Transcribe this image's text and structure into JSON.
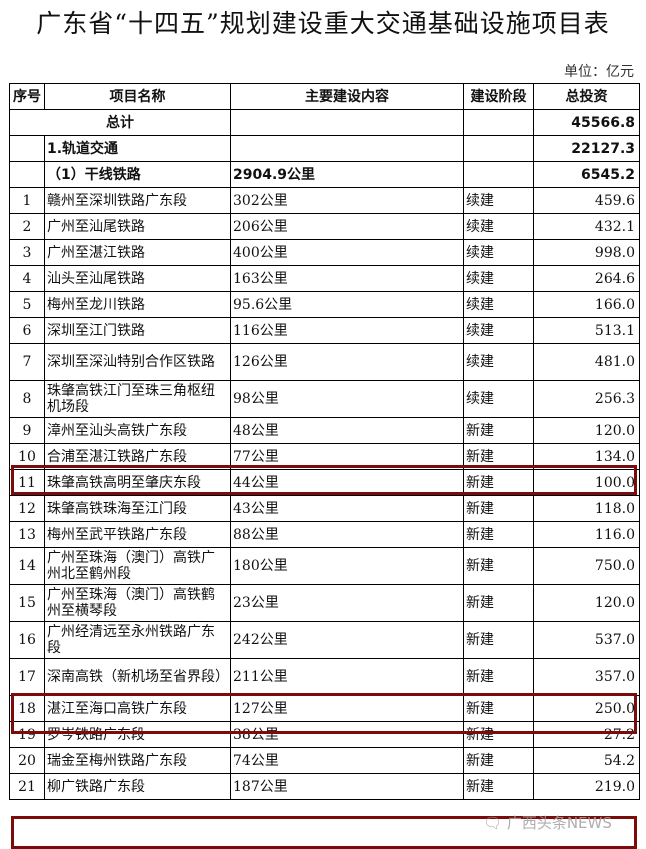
{
  "title": "广东省“十四五”规划建设重大交通基础设施项目表",
  "unit": "单位：亿元",
  "headers": [
    "序号",
    "项目名称",
    "主要建设内容",
    "建设阶段",
    "总投资"
  ],
  "total": {
    "label": "总计",
    "value": "45566.8"
  },
  "category": {
    "label": "1.轨道交通",
    "value": "22127.3"
  },
  "subcategory": {
    "label": "（1）干线铁路",
    "content": "2904.9公里",
    "value": "6545.2"
  },
  "rows": [
    {
      "no": "1",
      "name": "赣州至深圳铁路广东段",
      "content": "302公里",
      "stage": "续建",
      "value": "459.6"
    },
    {
      "no": "2",
      "name": "广州至汕尾铁路",
      "content": "206公里",
      "stage": "续建",
      "value": "432.1"
    },
    {
      "no": "3",
      "name": "广州至湛江铁路",
      "content": "400公里",
      "stage": "续建",
      "value": "998.0"
    },
    {
      "no": "4",
      "name": "汕头至汕尾铁路",
      "content": "163公里",
      "stage": "续建",
      "value": "264.6"
    },
    {
      "no": "5",
      "name": "梅州至龙川铁路",
      "content": "95.6公里",
      "stage": "续建",
      "value": "166.0"
    },
    {
      "no": "6",
      "name": "深圳至江门铁路",
      "content": "116公里",
      "stage": "续建",
      "value": "513.1"
    },
    {
      "no": "7",
      "name": "深圳至深汕特别合作区铁路",
      "content": "126公里",
      "stage": "续建",
      "value": "481.0"
    },
    {
      "no": "8",
      "name": "珠肇高铁江门至珠三角枢纽机场段",
      "content": "98公里",
      "stage": "续建",
      "value": "256.3"
    },
    {
      "no": "9",
      "name": "漳州至汕头高铁广东段",
      "content": "48公里",
      "stage": "新建",
      "value": "120.0"
    },
    {
      "no": "10",
      "name": "合浦至湛江铁路广东段",
      "content": "77公里",
      "stage": "新建",
      "value": "134.0",
      "highlighted": true
    },
    {
      "no": "11",
      "name": "珠肇高铁高明至肇庆东段",
      "content": "44公里",
      "stage": "新建",
      "value": "100.0"
    },
    {
      "no": "12",
      "name": "珠肇高铁珠海至江门段",
      "content": "43公里",
      "stage": "新建",
      "value": "118.0"
    },
    {
      "no": "13",
      "name": "梅州至武平铁路广东段",
      "content": "88公里",
      "stage": "新建",
      "value": "116.0"
    },
    {
      "no": "14",
      "name": "广州至珠海（澳门）高铁广州北至鹤州段",
      "content": "180公里",
      "stage": "新建",
      "value": "750.0"
    },
    {
      "no": "15",
      "name": "广州至珠海（澳门）高铁鹤州至横琴段",
      "content": "23公里",
      "stage": "新建",
      "value": "120.0"
    },
    {
      "no": "16",
      "name": "广州经清远至永州铁路广东段",
      "content": "242公里",
      "stage": "新建",
      "value": "537.0"
    },
    {
      "no": "17",
      "name": "深南高铁（新机场至省界段）",
      "content": "211公里",
      "stage": "新建",
      "value": "357.0",
      "highlighted": true
    },
    {
      "no": "18",
      "name": "湛江至海口高铁广东段",
      "content": "127公里",
      "stage": "新建",
      "value": "250.0"
    },
    {
      "no": "19",
      "name": "罗岑铁路广东段",
      "content": "38公里",
      "stage": "新建",
      "value": "27.2"
    },
    {
      "no": "20",
      "name": "瑞金至梅州铁路广东段",
      "content": "74公里",
      "stage": "新建",
      "value": "54.2"
    },
    {
      "no": "21",
      "name": "柳广铁路广东段",
      "content": "187公里",
      "stage": "新建",
      "value": "219.0",
      "highlighted": true
    }
  ],
  "highlight_color": "#7b0c0c",
  "watermark": "广西头条NEWS",
  "watermark_icon": "wechat-icon"
}
